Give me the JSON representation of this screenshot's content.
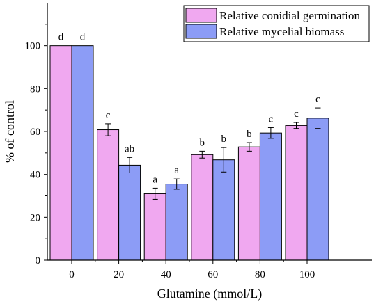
{
  "chart_data": {
    "type": "bar",
    "xlabel": "Glutamine (mmol/L)",
    "ylabel": "% of control",
    "categories": [
      "0",
      "20",
      "40",
      "60",
      "80",
      "100"
    ],
    "ylim": [
      0,
      120
    ],
    "yticks": [
      0,
      20,
      40,
      60,
      80,
      100
    ],
    "grid": false,
    "legend_position": "top-right",
    "series": [
      {
        "name": "Relative conidial germination",
        "color": "#f0a8f0",
        "values": [
          100,
          60.8,
          31.0,
          49.2,
          52.8,
          62.8
        ],
        "errors": [
          0,
          2.8,
          2.6,
          1.6,
          2.0,
          1.4
        ],
        "labels": [
          "d",
          "c",
          "a",
          "b",
          "b",
          "c"
        ]
      },
      {
        "name": "Relative mycelial biomass",
        "color": "#8c9cf6",
        "values": [
          100,
          44.3,
          35.5,
          46.8,
          59.3,
          66.2
        ],
        "errors": [
          0,
          3.6,
          2.4,
          5.7,
          2.5,
          4.8
        ],
        "labels": [
          "d",
          "ab",
          "a",
          "b",
          "c",
          "c"
        ]
      }
    ]
  }
}
